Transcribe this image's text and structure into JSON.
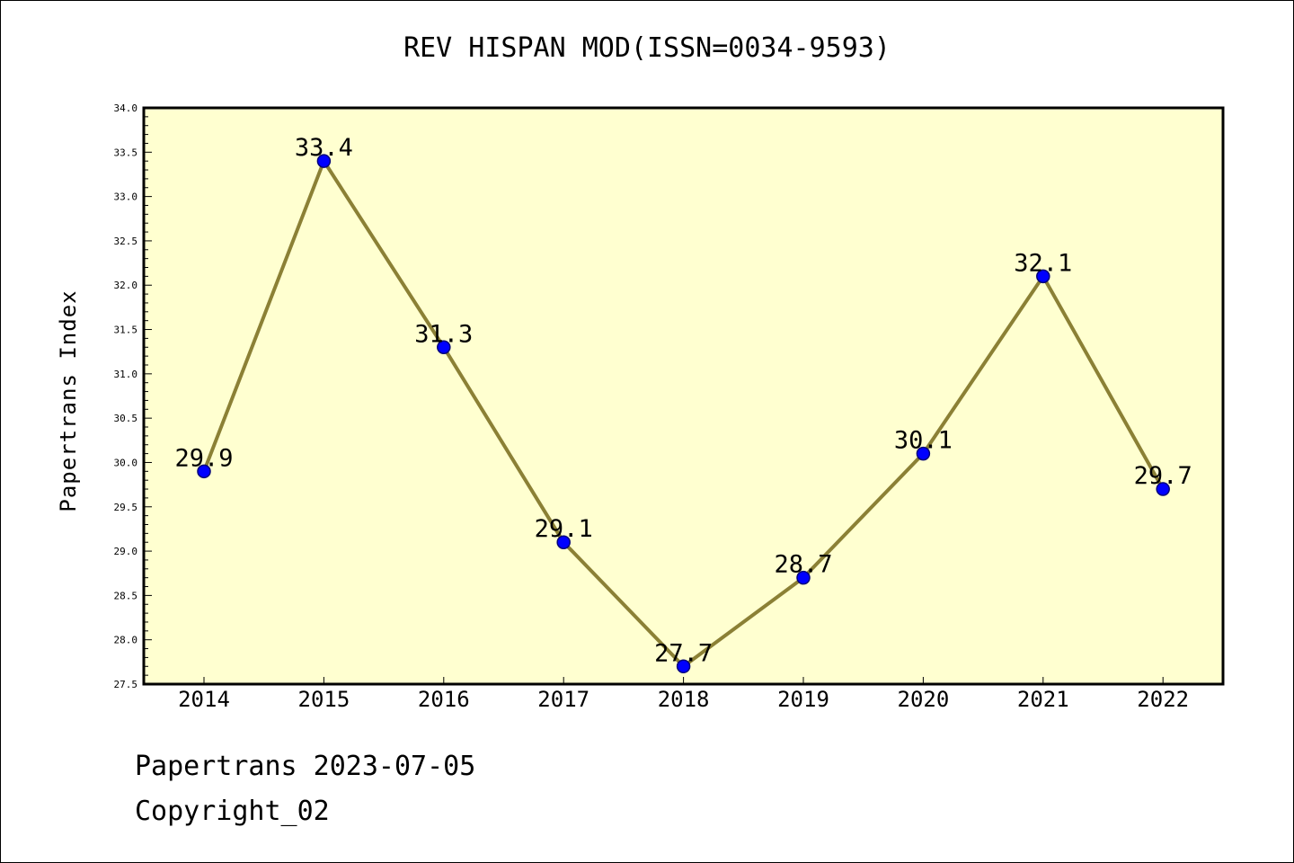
{
  "chart_data": {
    "type": "line",
    "title": "REV HISPAN MOD(ISSN=0034-9593)",
    "ylabel": "Papertrans Index",
    "xlabel": "",
    "categories": [
      "2014",
      "2015",
      "2016",
      "2017",
      "2018",
      "2019",
      "2020",
      "2021",
      "2022"
    ],
    "series": [
      {
        "values": [
          29.9,
          33.4,
          31.3,
          29.1,
          27.7,
          28.7,
          30.1,
          32.1,
          29.7
        ]
      }
    ],
    "data_labels": [
      "29.9",
      "33.4",
      "31.3",
      "29.1",
      "27.7",
      "28.7",
      "30.1",
      "32.1",
      "29.7"
    ],
    "ylim": [
      27.5,
      34.0
    ],
    "yticks": [
      "27.5",
      "28.0",
      "28.5",
      "29.0",
      "29.5",
      "30.0",
      "30.5",
      "31.0",
      "31.5",
      "32.0",
      "32.5",
      "33.0",
      "33.5",
      "34.0"
    ],
    "grid": false,
    "legend": "none",
    "colors": {
      "plot_background": "#ffffd0",
      "line": "#8b8035",
      "marker": "#0000ff",
      "marker_edge": "#00007a"
    }
  },
  "footer": {
    "date_text": "Papertrans 2023-07-05",
    "copyright_text": "Copyright_02"
  }
}
